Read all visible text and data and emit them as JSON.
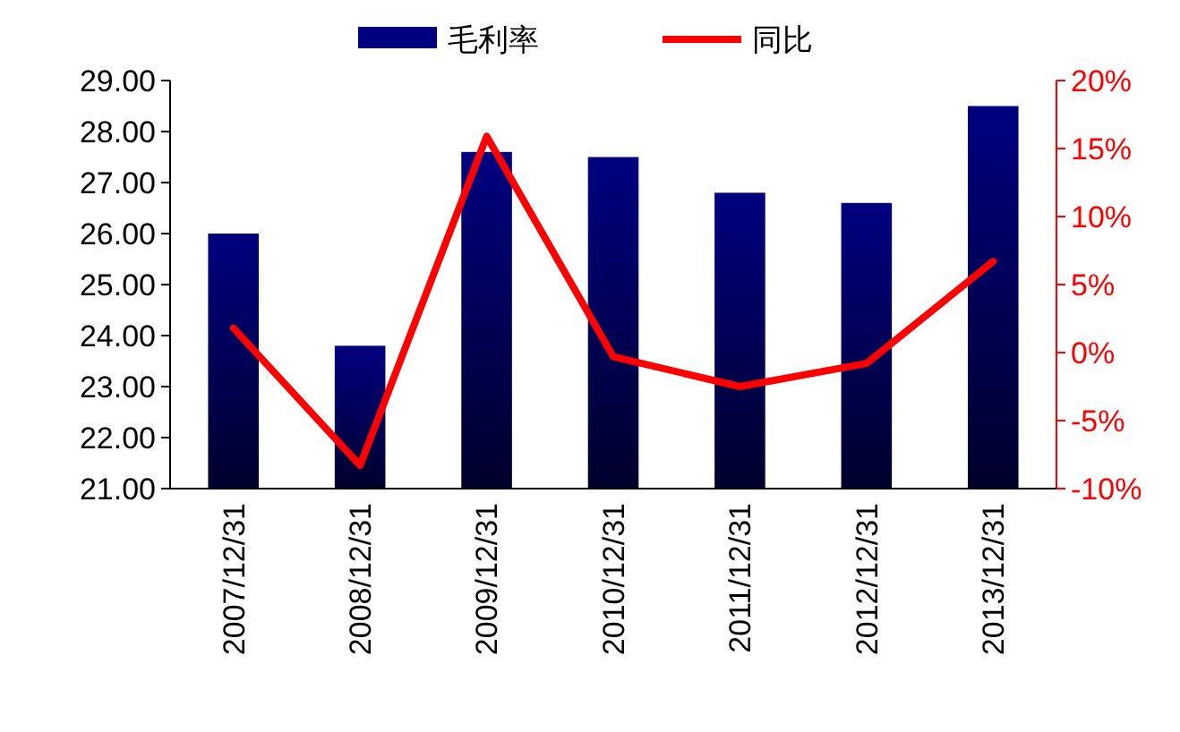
{
  "chart_data": {
    "type": "bar",
    "categories": [
      "2007/12/31",
      "2008/12/31",
      "2009/12/31",
      "2010/12/31",
      "2011/12/31",
      "2012/12/31",
      "2013/12/31"
    ],
    "series": [
      {
        "name": "毛利率",
        "color": "#000080",
        "values": [
          26.0,
          23.8,
          27.6,
          27.5,
          26.8,
          26.6,
          28.5
        ]
      },
      {
        "name": "同比",
        "type": "line",
        "color": "#ff0000",
        "axis": "y2",
        "values": [
          1.8,
          -8.3,
          15.9,
          -0.3,
          -2.5,
          -0.8,
          6.7
        ]
      }
    ],
    "ylim": [
      21,
      29
    ],
    "yticks": [
      {
        "value": 21,
        "label": "21.00"
      },
      {
        "value": 22,
        "label": "22.00"
      },
      {
        "value": 23,
        "label": "23.00"
      },
      {
        "value": 24,
        "label": "24.00"
      },
      {
        "value": 25,
        "label": "25.00"
      },
      {
        "value": 26,
        "label": "26.00"
      },
      {
        "value": 27,
        "label": "27.00"
      },
      {
        "value": 28,
        "label": "28.00"
      },
      {
        "value": 29,
        "label": "29.00"
      }
    ],
    "y2lim": [
      -10,
      20
    ],
    "y2ticks": [
      {
        "value": -10,
        "label": "-10%"
      },
      {
        "value": -5,
        "label": "-5%"
      },
      {
        "value": 0,
        "label": "0%"
      },
      {
        "value": 5,
        "label": "5%"
      },
      {
        "value": 10,
        "label": "10%"
      },
      {
        "value": 15,
        "label": "15%"
      },
      {
        "value": 20,
        "label": "20%"
      }
    ],
    "grid": false,
    "legend": "top",
    "marker": "none",
    "line_style": "solid"
  }
}
